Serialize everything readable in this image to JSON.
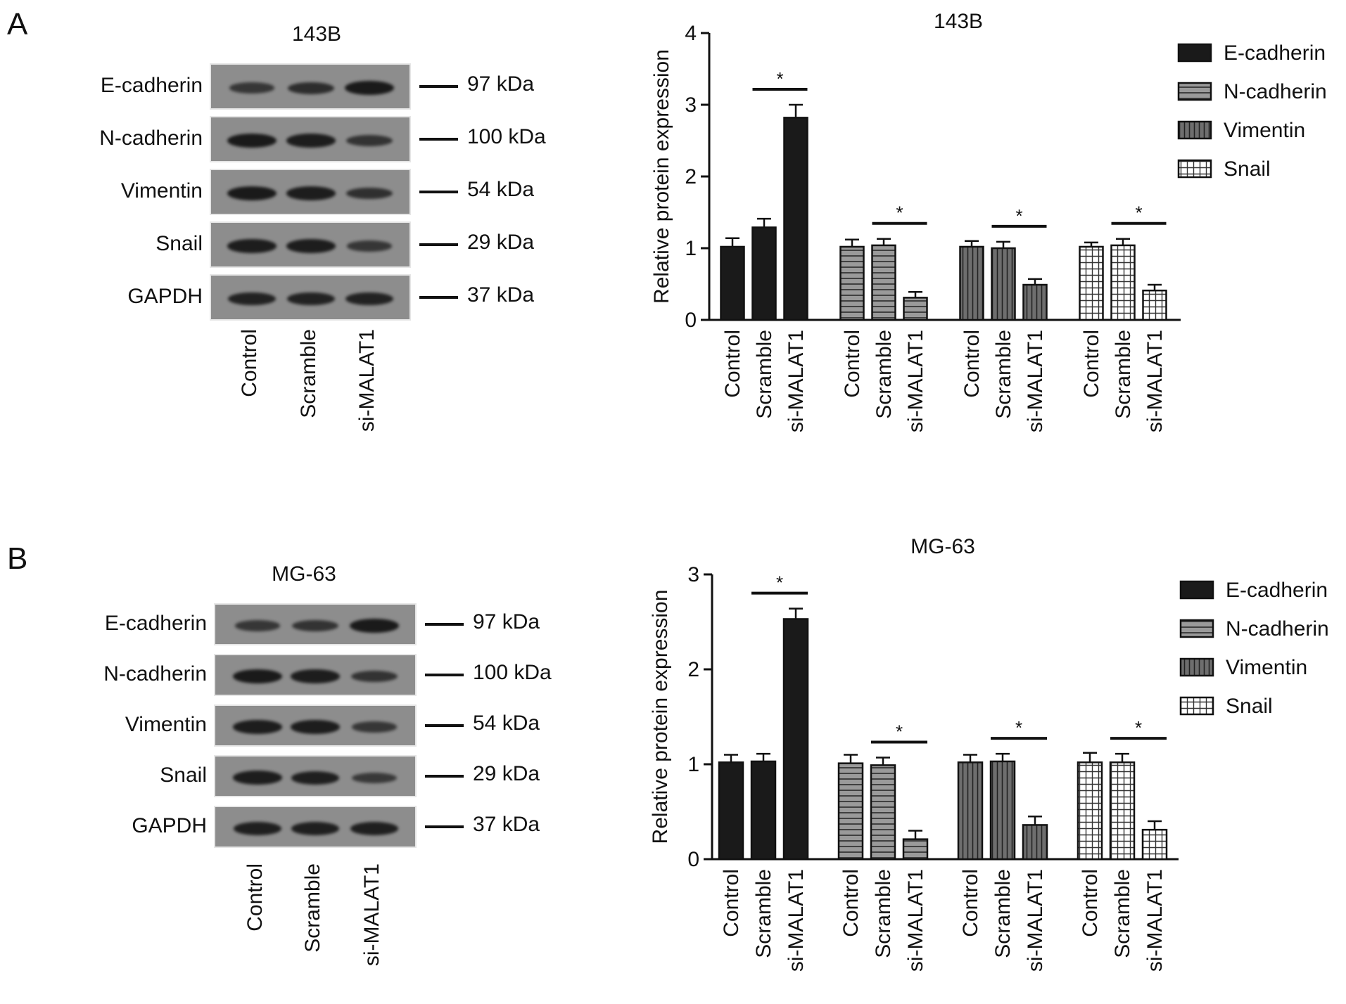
{
  "panels": [
    {
      "letter": "A",
      "blot": {
        "title": "143B",
        "rows": [
          {
            "label": "E-cadherin",
            "mw": "97 kDa",
            "intensity": [
              0.55,
              0.7,
              1.0
            ]
          },
          {
            "label": "N-cadherin",
            "mw": "100 kDa",
            "intensity": [
              1.0,
              0.95,
              0.6
            ]
          },
          {
            "label": "Vimentin",
            "mw": "54 kDa",
            "intensity": [
              1.0,
              0.95,
              0.65
            ]
          },
          {
            "label": "Snail",
            "mw": "29 kDa",
            "intensity": [
              0.95,
              0.95,
              0.55
            ]
          },
          {
            "label": "GAPDH",
            "mw": "37 kDa",
            "intensity": [
              0.85,
              0.85,
              0.85
            ]
          }
        ],
        "lanes": [
          "Control",
          "Scramble",
          "si-MALAT1"
        ]
      }
    },
    {
      "letter": "B",
      "blot": {
        "title": "MG-63",
        "rows": [
          {
            "label": "E-cadherin",
            "mw": "97 kDa",
            "intensity": [
              0.55,
              0.6,
              1.0
            ]
          },
          {
            "label": "N-cadherin",
            "mw": "100 kDa",
            "intensity": [
              1.0,
              0.95,
              0.6
            ]
          },
          {
            "label": "Vimentin",
            "mw": "54 kDa",
            "intensity": [
              0.95,
              0.95,
              0.55
            ]
          },
          {
            "label": "Snail",
            "mw": "29 kDa",
            "intensity": [
              0.95,
              0.9,
              0.5
            ]
          },
          {
            "label": "GAPDH",
            "mw": "37 kDa",
            "intensity": [
              0.9,
              0.9,
              0.9
            ]
          }
        ],
        "lanes": [
          "Control",
          "Scramble",
          "si-MALAT1"
        ]
      }
    }
  ],
  "chart_data": [
    {
      "type": "bar",
      "title": "143B",
      "ylabel": "Relative protein expression",
      "xlabel": "",
      "ylim": [
        0,
        4
      ],
      "yticks": [
        0,
        1,
        2,
        3,
        4
      ],
      "categories": [
        "Control",
        "Scramble",
        "si-MALAT1"
      ],
      "legend_position": "right",
      "series": [
        {
          "name": "E-cadherin",
          "values": [
            1.02,
            1.29,
            2.82
          ],
          "errors": [
            0.12,
            0.12,
            0.18
          ],
          "significance": "*"
        },
        {
          "name": "N-cadherin",
          "values": [
            1.02,
            1.04,
            0.31
          ],
          "errors": [
            0.1,
            0.09,
            0.08
          ],
          "significance": "*"
        },
        {
          "name": "Vimentin",
          "values": [
            1.02,
            1.0,
            0.49
          ],
          "errors": [
            0.08,
            0.09,
            0.08
          ],
          "significance": "*"
        },
        {
          "name": "Snail",
          "values": [
            1.02,
            1.04,
            0.41
          ],
          "errors": [
            0.06,
            0.09,
            0.08
          ],
          "significance": "*"
        }
      ]
    },
    {
      "type": "bar",
      "title": "MG-63",
      "ylabel": "Relative protein expression",
      "xlabel": "",
      "ylim": [
        0,
        3
      ],
      "yticks": [
        0,
        1,
        2,
        3
      ],
      "categories": [
        "Control",
        "Scramble",
        "si-MALAT1"
      ],
      "legend_position": "right",
      "series": [
        {
          "name": "E-cadherin",
          "values": [
            1.02,
            1.03,
            2.53
          ],
          "errors": [
            0.08,
            0.08,
            0.11
          ],
          "significance": "*"
        },
        {
          "name": "N-cadherin",
          "values": [
            1.01,
            0.99,
            0.21
          ],
          "errors": [
            0.09,
            0.08,
            0.09
          ],
          "significance": "*"
        },
        {
          "name": "Vimentin",
          "values": [
            1.02,
            1.03,
            0.36
          ],
          "errors": [
            0.08,
            0.08,
            0.09
          ],
          "significance": "*"
        },
        {
          "name": "Snail",
          "values": [
            1.02,
            1.02,
            0.31
          ],
          "errors": [
            0.1,
            0.09,
            0.09
          ],
          "significance": "*"
        }
      ]
    }
  ],
  "style": {
    "bar_fill": "#1a1a1a",
    "hatch_fill": "#8a8a8a",
    "axis_color": "#111111",
    "blot_background": "#8d8d8d",
    "band_color": "#1a1a1a"
  }
}
